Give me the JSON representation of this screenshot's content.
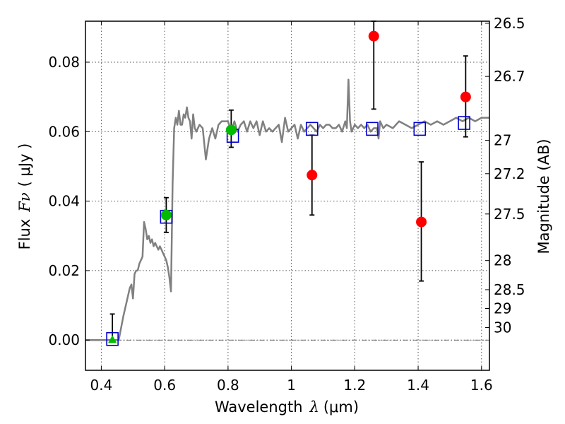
{
  "chart_data": {
    "type": "scatter",
    "xlabel_prefix": "Wavelength",
    "xlabel_symbol": "λ",
    "xlabel_unit": "(μm)",
    "ylabel_prefix": "Flux",
    "ylabel_symbol": "Fν",
    "ylabel_unit": "( μJy )",
    "y2label": "Magnitude (AB)",
    "xlim": [
      0.35,
      1.625
    ],
    "ylim": [
      -0.0087,
      0.0918
    ],
    "grid": true,
    "x_ticks": [
      0.4,
      0.6,
      0.8,
      1.0,
      1.2,
      1.4,
      1.6
    ],
    "x_tick_labels": [
      "0.4",
      "0.6",
      "0.8",
      "1",
      "1.2",
      "1.4",
      "1.6"
    ],
    "y_ticks": [
      0.0,
      0.02,
      0.04,
      0.06,
      0.08
    ],
    "y_tick_labels": [
      "0.00",
      "0.02",
      "0.04",
      "0.06",
      "0.08"
    ],
    "y2_ticks": [
      {
        "label": "26.5",
        "flux": 0.0912
      },
      {
        "label": "26.7",
        "flux": 0.0759
      },
      {
        "label": "27",
        "flux": 0.0575
      },
      {
        "label": "27.2",
        "flux": 0.0479
      },
      {
        "label": "27.5",
        "flux": 0.0363
      },
      {
        "label": "28",
        "flux": 0.0229
      },
      {
        "label": "28.5",
        "flux": 0.0145
      },
      {
        "label": "29",
        "flux": 0.0091
      },
      {
        "label": "30",
        "flux": 0.0036
      }
    ],
    "zero_line": 0,
    "colors": {
      "model": "#808080",
      "synthetic": "#0000cc",
      "red_obs": "#ff0000",
      "green_obs": "#00bb00",
      "errorbar": "#000000",
      "grid": "#555555",
      "zero_line": "#444444"
    },
    "model_spectrum": {
      "x": [
        0.35,
        0.44,
        0.455,
        0.47,
        0.48,
        0.49,
        0.495,
        0.5,
        0.505,
        0.51,
        0.515,
        0.52,
        0.53,
        0.535,
        0.54,
        0.545,
        0.55,
        0.555,
        0.56,
        0.565,
        0.57,
        0.575,
        0.58,
        0.585,
        0.59,
        0.595,
        0.6,
        0.605,
        0.61,
        0.615,
        0.62,
        0.625,
        0.63,
        0.635,
        0.64,
        0.645,
        0.65,
        0.655,
        0.66,
        0.665,
        0.67,
        0.675,
        0.68,
        0.685,
        0.69,
        0.695,
        0.7,
        0.71,
        0.72,
        0.73,
        0.74,
        0.75,
        0.76,
        0.77,
        0.78,
        0.79,
        0.8,
        0.81,
        0.82,
        0.83,
        0.84,
        0.85,
        0.86,
        0.87,
        0.88,
        0.89,
        0.9,
        0.91,
        0.92,
        0.93,
        0.94,
        0.95,
        0.96,
        0.97,
        0.98,
        0.99,
        1.0,
        1.01,
        1.02,
        1.03,
        1.04,
        1.05,
        1.06,
        1.07,
        1.08,
        1.09,
        1.1,
        1.11,
        1.12,
        1.13,
        1.14,
        1.15,
        1.16,
        1.17,
        1.175,
        1.18,
        1.185,
        1.19,
        1.2,
        1.21,
        1.22,
        1.23,
        1.24,
        1.25,
        1.26,
        1.27,
        1.275,
        1.28,
        1.29,
        1.3,
        1.32,
        1.34,
        1.36,
        1.38,
        1.4,
        1.42,
        1.44,
        1.46,
        1.48,
        1.5,
        1.52,
        1.54,
        1.56,
        1.58,
        1.6,
        1.625
      ],
      "y": [
        0.0,
        0.0,
        0.0,
        0.007,
        0.011,
        0.015,
        0.016,
        0.012,
        0.019,
        0.02,
        0.02,
        0.022,
        0.024,
        0.034,
        0.032,
        0.029,
        0.03,
        0.028,
        0.029,
        0.027,
        0.028,
        0.027,
        0.026,
        0.027,
        0.026,
        0.025,
        0.024,
        0.023,
        0.021,
        0.018,
        0.014,
        0.045,
        0.061,
        0.064,
        0.062,
        0.066,
        0.062,
        0.062,
        0.065,
        0.064,
        0.067,
        0.064,
        0.063,
        0.058,
        0.065,
        0.061,
        0.06,
        0.062,
        0.061,
        0.052,
        0.058,
        0.061,
        0.058,
        0.062,
        0.063,
        0.063,
        0.063,
        0.06,
        0.063,
        0.06,
        0.062,
        0.063,
        0.06,
        0.063,
        0.061,
        0.063,
        0.059,
        0.063,
        0.06,
        0.061,
        0.06,
        0.061,
        0.062,
        0.057,
        0.064,
        0.06,
        0.061,
        0.062,
        0.058,
        0.062,
        0.06,
        0.061,
        0.062,
        0.061,
        0.06,
        0.062,
        0.061,
        0.062,
        0.062,
        0.061,
        0.061,
        0.062,
        0.06,
        0.063,
        0.061,
        0.075,
        0.063,
        0.06,
        0.062,
        0.061,
        0.062,
        0.061,
        0.062,
        0.06,
        0.061,
        0.061,
        0.058,
        0.063,
        0.061,
        0.062,
        0.061,
        0.063,
        0.062,
        0.061,
        0.062,
        0.063,
        0.062,
        0.063,
        0.062,
        0.063,
        0.064,
        0.063,
        0.064,
        0.063,
        0.064,
        0.064
      ]
    },
    "series": [
      {
        "kind": "synthetic_square",
        "x": [
          0.435,
          0.605,
          0.815,
          1.065,
          1.255,
          1.405,
          1.545
        ],
        "y": [
          0.0003,
          0.0355,
          0.0588,
          0.0608,
          0.0608,
          0.0608,
          0.0625
        ]
      },
      {
        "kind": "red_circle",
        "x": [
          1.065,
          1.26,
          1.41,
          1.55
        ],
        "y": [
          0.0475,
          0.0875,
          0.034,
          0.07
        ],
        "err_low": [
          0.036,
          0.0665,
          0.017,
          0.0585
        ],
        "err_high": [
          0.059,
          0.0918,
          0.0513,
          0.0818
        ]
      },
      {
        "kind": "green_circle",
        "x": [
          0.605,
          0.81
        ],
        "y": [
          0.036,
          0.0605
        ],
        "err_low": [
          0.031,
          0.0555
        ],
        "err_high": [
          0.041,
          0.0662
        ]
      },
      {
        "kind": "green_triangle",
        "x": [
          0.435
        ],
        "y": [
          0.0
        ],
        "err_low": [
          0.0
        ],
        "err_high": [
          0.0075
        ]
      }
    ]
  }
}
